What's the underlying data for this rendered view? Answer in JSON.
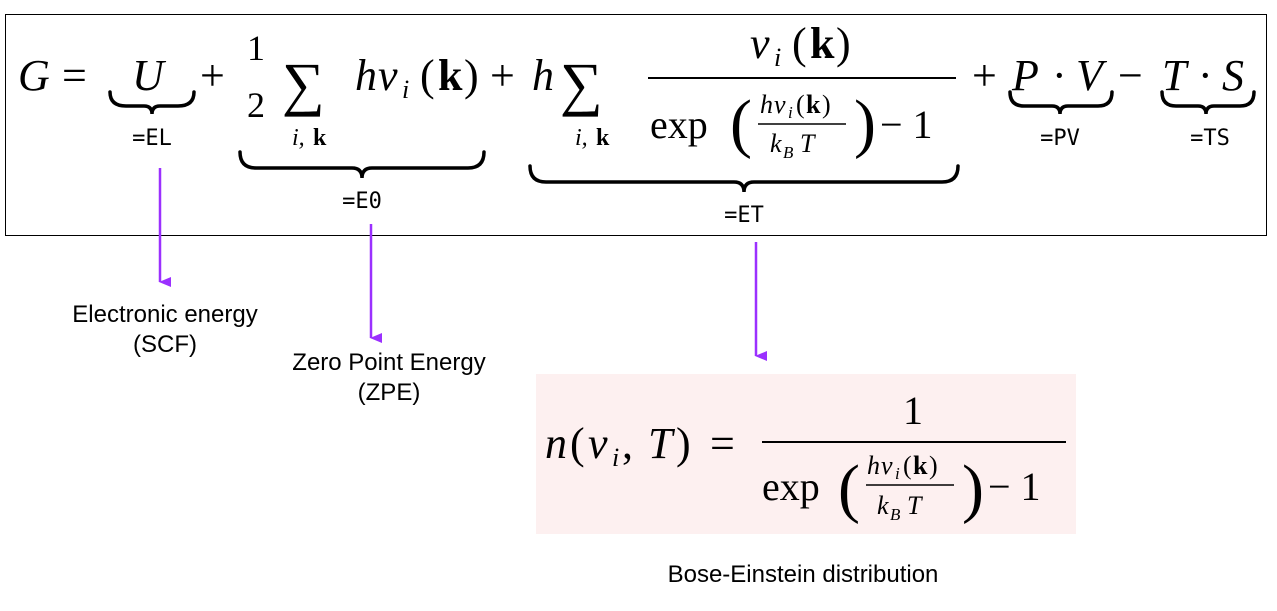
{
  "equation": {
    "G": "G",
    "eq": "=",
    "U": "U",
    "plus": "+",
    "minus": "−",
    "half_num": "1",
    "half_den": "2",
    "sum": "∑",
    "sum_sub_i": "i,",
    "sum_sub_k": "k",
    "h": "h",
    "nu": "ν",
    "nu_sub": "i",
    "lparen": "(",
    "rparen": ")",
    "k_bold": "k",
    "exp": "exp",
    "one": "1",
    "minus_one": "− 1",
    "kB": "k",
    "kB_sub": "B",
    "T": "T",
    "P": "P",
    "V": "V",
    "S": "S",
    "cdot": "·",
    "brace_EL": "=EL",
    "brace_E0": "=E0",
    "brace_ET": "=ET",
    "brace_PV": "=PV",
    "brace_TS": "=TS"
  },
  "labels": {
    "electronic_line1": "Electronic energy",
    "electronic_line2": "(SCF)",
    "zpe_line1": "Zero Point Energy",
    "zpe_line2": "(ZPE)",
    "bose": "Bose-Einstein distribution"
  },
  "bose_formula": {
    "n": "n",
    "comma": ",",
    "T": "T",
    "eq": "=",
    "one": "1",
    "exp": "exp",
    "minus_one": "− 1"
  },
  "colors": {
    "arrow": "#9b30ff",
    "bose_bg": "#fdf0f0"
  }
}
